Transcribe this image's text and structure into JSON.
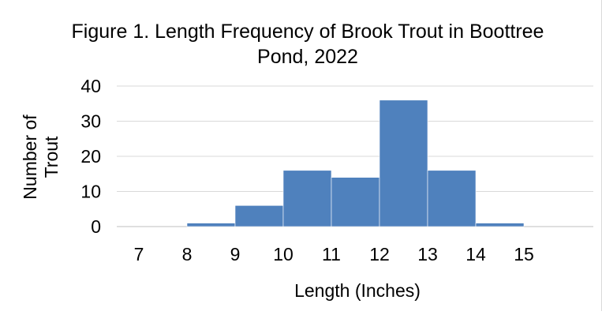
{
  "chart_data": {
    "type": "bar",
    "title_line1": "Figure 1. Length Frequency of Brook Trout in Boottree",
    "title_line2": "Pond, 2022",
    "xlabel": "Length (Inches)",
    "ylabel_line1": "Number of",
    "ylabel_line2": "Trout",
    "categories": [
      "7",
      "8",
      "9",
      "10",
      "11",
      "12",
      "13",
      "14",
      "15"
    ],
    "values": [
      0,
      1,
      6,
      16,
      14,
      36,
      16,
      1,
      0
    ],
    "ylim": [
      0,
      40
    ],
    "yticks": [
      "0",
      "10",
      "20",
      "30",
      "40"
    ],
    "grid": true,
    "bar_color": "#4F81BD"
  }
}
